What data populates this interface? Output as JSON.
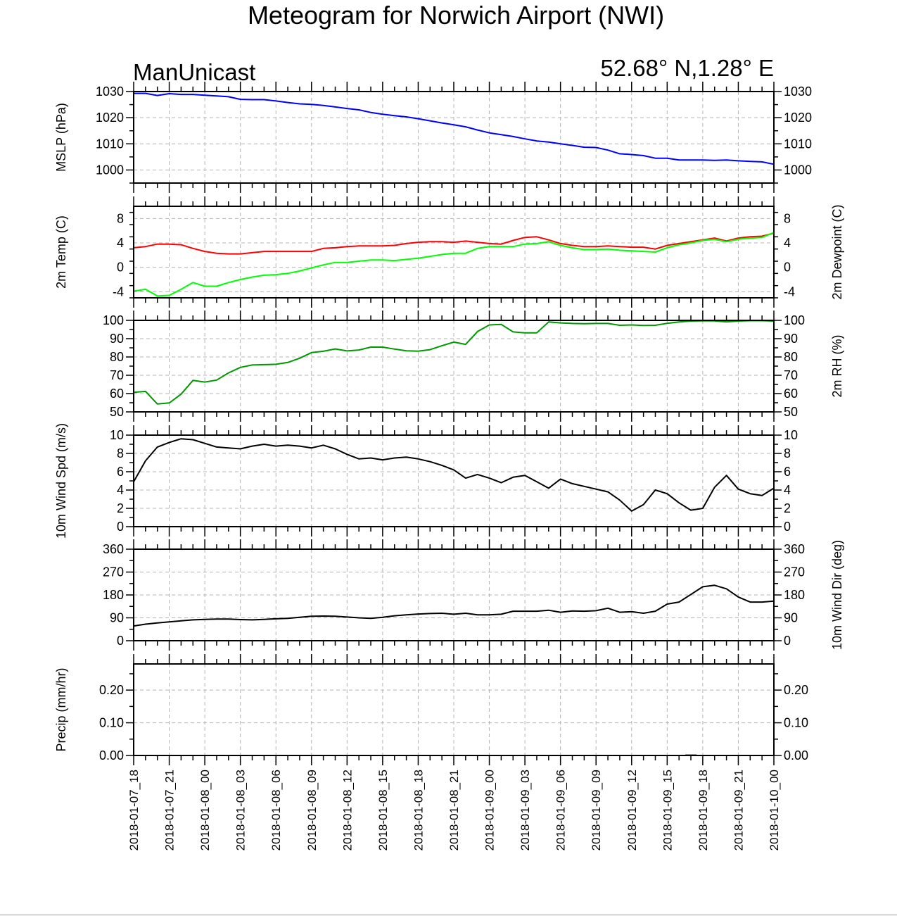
{
  "chart_data": {
    "type": "line",
    "title": "Meteogram for Norwich Airport (NWI)",
    "subtitle_left": "ManUnicast",
    "subtitle_right": "52.68° N,1.28° E",
    "x_ticks": [
      "2018-01-07_18",
      "2018-01-07_21",
      "2018-01-08_00",
      "2018-01-08_03",
      "2018-01-08_06",
      "2018-01-08_09",
      "2018-01-08_12",
      "2018-01-08_15",
      "2018-01-08_18",
      "2018-01-08_21",
      "2018-01-09_00",
      "2018-01-09_03",
      "2018-01-09_06",
      "2018-01-09_09",
      "2018-01-09_12",
      "2018-01-09_15",
      "2018-01-09_18",
      "2018-01-09_21",
      "2018-01-10_00"
    ],
    "x_hours": [
      0,
      1,
      2,
      3,
      4,
      5,
      6,
      7,
      8,
      9,
      10,
      11,
      12,
      13,
      14,
      15,
      16,
      17,
      18,
      19,
      20,
      21,
      22,
      23,
      24,
      25,
      26,
      27,
      28,
      29,
      30,
      31,
      32,
      33,
      34,
      35,
      36,
      37,
      38,
      39,
      40,
      41,
      42,
      43,
      44,
      45,
      46,
      47,
      48,
      49,
      50,
      51,
      52,
      53,
      54
    ],
    "x_range_hours": [
      0,
      54
    ],
    "grid": true,
    "panels": [
      {
        "id": "mslp",
        "ylabel_left": "MSLP (hPa)",
        "ylabel_right": "",
        "ylim": [
          995,
          1030
        ],
        "yticks": [
          1000,
          1010,
          1020,
          1030
        ],
        "yticks_right": true,
        "series": [
          {
            "color": "#0000ff",
            "values": [
              1029.3,
              1029.3,
              1028.5,
              1029.2,
              1028.9,
              1028.9,
              1028.6,
              1028.3,
              1028.0,
              1027.0,
              1026.9,
              1026.9,
              1026.4,
              1025.8,
              1025.3,
              1025.1,
              1024.7,
              1024.1,
              1023.5,
              1023.0,
              1022.0,
              1021.3,
              1020.8,
              1020.3,
              1019.6,
              1018.8,
              1018.0,
              1017.3,
              1016.5,
              1015.3,
              1014.2,
              1013.5,
              1012.8,
              1011.9,
              1011.1,
              1010.7,
              1010.0,
              1009.4,
              1008.7,
              1008.6,
              1007.6,
              1006.2,
              1005.9,
              1005.5,
              1004.5,
              1004.5,
              1003.8,
              1003.8,
              1003.8,
              1003.7,
              1003.8,
              1003.5,
              1003.3,
              1003.1,
              1002.2
            ]
          }
        ]
      },
      {
        "id": "temp",
        "ylabel_left": "2m Temp (C)",
        "ylabel_right": "2m Dewpoint (C)",
        "ylim": [
          -5,
          10
        ],
        "yticks": [
          -4,
          0,
          4,
          8
        ],
        "yticks_right": true,
        "series": [
          {
            "color": "#ff0000",
            "values": [
              3.2,
              3.4,
              3.8,
              3.8,
              3.7,
              3.1,
              2.6,
              2.3,
              2.2,
              2.2,
              2.4,
              2.6,
              2.6,
              2.6,
              2.6,
              2.6,
              3.1,
              3.2,
              3.4,
              3.5,
              3.5,
              3.5,
              3.6,
              3.9,
              4.1,
              4.2,
              4.2,
              4.1,
              4.3,
              4.1,
              3.9,
              3.8,
              4.4,
              4.9,
              5.0,
              4.5,
              3.9,
              3.6,
              3.4,
              3.4,
              3.5,
              3.4,
              3.3,
              3.3,
              3.0,
              3.6,
              3.9,
              4.2,
              4.5,
              4.8,
              4.3,
              4.8,
              5.0,
              5.1,
              5.6
            ]
          },
          {
            "color": "#00ff00",
            "values": [
              -3.9,
              -3.6,
              -4.7,
              -4.6,
              -3.6,
              -2.5,
              -3.1,
              -3.1,
              -2.5,
              -2.0,
              -1.6,
              -1.3,
              -1.2,
              -1.0,
              -0.6,
              -0.1,
              0.4,
              0.8,
              0.8,
              1.0,
              1.2,
              1.2,
              1.1,
              1.3,
              1.5,
              1.8,
              2.1,
              2.3,
              2.3,
              3.1,
              3.4,
              3.4,
              3.4,
              3.8,
              3.9,
              4.2,
              3.6,
              3.2,
              2.9,
              2.9,
              3.0,
              2.8,
              2.7,
              2.6,
              2.5,
              3.2,
              3.7,
              4.0,
              4.4,
              4.6,
              4.2,
              4.6,
              4.8,
              4.9,
              5.7
            ]
          }
        ]
      },
      {
        "id": "rh",
        "ylabel_left": "",
        "ylabel_right": "2m RH (%)",
        "ylim": [
          50,
          100
        ],
        "yticks": [
          50,
          60,
          70,
          80,
          90,
          100
        ],
        "yticks_left": true,
        "yticks_right": true,
        "series": [
          {
            "color": "#009900",
            "values": [
              60.7,
              61.2,
              54.3,
              54.9,
              59.7,
              67.2,
              66.3,
              67.4,
              71.3,
              74.3,
              75.6,
              75.8,
              76.0,
              77.0,
              79.3,
              82.4,
              83.1,
              84.4,
              83.3,
              83.8,
              85.4,
              85.4,
              84.3,
              83.4,
              83.2,
              84.0,
              86.1,
              88.1,
              86.9,
              93.9,
              97.5,
              97.8,
              93.7,
              93.2,
              93.2,
              99.1,
              98.6,
              98.3,
              98.2,
              98.3,
              98.3,
              97.3,
              97.5,
              97.2,
              97.3,
              98.4,
              99.1,
              99.6,
              99.7,
              99.7,
              99.2,
              99.6,
              99.8,
              99.8,
              99.6
            ]
          }
        ]
      },
      {
        "id": "wspd",
        "ylabel_left": "10m Wind Spd (m/s)",
        "ylabel_right": "",
        "ylim": [
          0,
          10
        ],
        "yticks": [
          0,
          2,
          4,
          6,
          8,
          10
        ],
        "yticks_left": true,
        "yticks_right": true,
        "series": [
          {
            "color": "#000000",
            "values": [
              4.9,
              7.2,
              8.7,
              9.2,
              9.6,
              9.5,
              9.1,
              8.7,
              8.6,
              8.5,
              8.8,
              9.0,
              8.8,
              8.9,
              8.8,
              8.6,
              8.9,
              8.5,
              7.9,
              7.4,
              7.5,
              7.3,
              7.5,
              7.6,
              7.4,
              7.1,
              6.7,
              6.2,
              5.3,
              5.7,
              5.3,
              4.8,
              5.4,
              5.6,
              4.9,
              4.2,
              5.2,
              4.7,
              4.4,
              4.1,
              3.8,
              2.9,
              1.7,
              2.4,
              4.0,
              3.6,
              2.6,
              1.8,
              2.0,
              4.3,
              5.6,
              4.1,
              3.6,
              3.4,
              4.2
            ]
          }
        ]
      },
      {
        "id": "wdir",
        "ylabel_left": "",
        "ylabel_right": "10m Wind Dir (deg)",
        "ylim": [
          0,
          360
        ],
        "yticks": [
          0,
          90,
          180,
          270,
          360
        ],
        "yticks_left": true,
        "yticks_right": true,
        "series": [
          {
            "color": "#000000",
            "values": [
              58,
              65,
              70,
              74,
              78,
              82,
              84,
              85,
              85,
              83,
              82,
              84,
              86,
              88,
              92,
              96,
              97,
              96,
              93,
              90,
              88,
              92,
              98,
              102,
              105,
              107,
              108,
              104,
              108,
              102,
              102,
              104,
              116,
              116,
              116,
              120,
              112,
              117,
              116,
              118,
              128,
              112,
              114,
              108,
              116,
              144,
              152,
              182,
              212,
              218,
              204,
              172,
              152,
              152,
              156
            ]
          }
        ]
      },
      {
        "id": "precip",
        "ylabel_left": "Precip (mm/hr)",
        "ylabel_right": "",
        "ylim": [
          0,
          0.28
        ],
        "yticks": [
          0.0,
          0.1,
          0.2
        ],
        "ytick_labels": [
          "0.00",
          "0.10",
          "0.20"
        ],
        "yticks_right": true,
        "series": [
          {
            "color": "#000000",
            "type": "bar",
            "values": [
              0,
              0,
              0,
              0,
              0,
              0,
              0,
              0,
              0,
              0,
              0,
              0,
              0,
              0,
              0,
              0,
              0,
              0,
              0,
              0,
              0,
              0,
              0,
              0,
              0,
              0,
              0,
              0,
              0,
              0,
              0,
              0,
              0,
              0,
              0,
              0,
              0,
              0,
              0,
              0,
              0,
              0,
              0,
              0,
              0,
              0,
              0,
              0.003,
              0,
              0,
              0,
              0,
              0,
              0,
              0
            ]
          }
        ]
      }
    ]
  }
}
